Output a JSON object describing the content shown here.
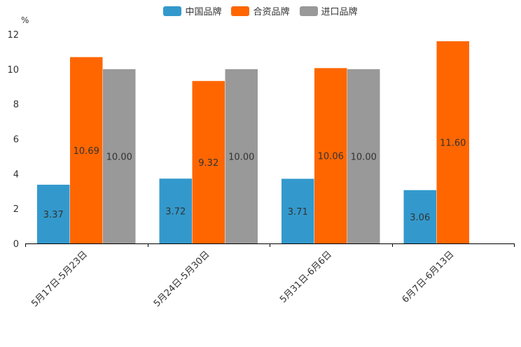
{
  "chart_data": {
    "type": "bar",
    "unit_label": "%",
    "categories": [
      "5月17日-5月23日",
      "5月24日-5月30日",
      "5月31日-6月6日",
      "6月7日-6月13日"
    ],
    "series": [
      {
        "name": "中国品牌",
        "color": "#3399cc",
        "values": [
          3.37,
          3.72,
          3.71,
          3.06
        ]
      },
      {
        "name": "合资品牌",
        "color": "#ff6600",
        "values": [
          10.69,
          9.32,
          10.06,
          11.6
        ]
      },
      {
        "name": "进口品牌",
        "color": "#999999",
        "values": [
          10.0,
          10.0,
          10.0,
          null
        ]
      }
    ],
    "data_labels": [
      [
        "3.37",
        "3.72",
        "3.71",
        "3.06"
      ],
      [
        "10.69",
        "9.32",
        "10.06",
        "11.60"
      ],
      [
        "10.00",
        "10.00",
        "10.00",
        null
      ]
    ],
    "ylim": [
      0,
      12
    ],
    "yticks": [
      "0",
      "2",
      "4",
      "6",
      "8",
      "10",
      "12"
    ],
    "legend_position": "top-center",
    "grid": false
  }
}
